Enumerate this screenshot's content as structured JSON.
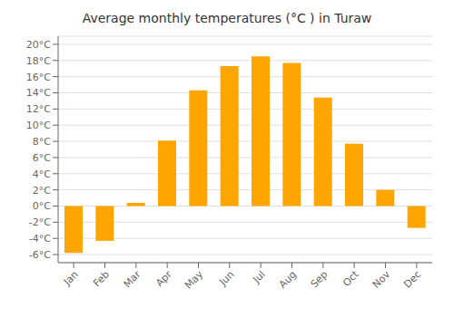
{
  "chart_data": {
    "type": "bar",
    "title": "Average monthly temperatures (°C ) in Turaw",
    "categories": [
      "Jan",
      "Feb",
      "Mar",
      "Apr",
      "May",
      "Jun",
      "Jul",
      "Aug",
      "Sep",
      "Oct",
      "Nov",
      "Dec"
    ],
    "values": [
      -5.8,
      -4.3,
      0.4,
      8.1,
      14.3,
      17.3,
      18.5,
      17.7,
      13.4,
      7.7,
      2.0,
      -2.7
    ],
    "color": "#FFA500",
    "ylim": [
      -7,
      21
    ],
    "yticks": [
      {
        "value": -6,
        "label": "-6°C"
      },
      {
        "value": -4,
        "label": "-4°C"
      },
      {
        "value": -2,
        "label": "-2°C"
      },
      {
        "value": 0,
        "label": "0°C"
      },
      {
        "value": 2,
        "label": "2°C"
      },
      {
        "value": 4,
        "label": "4°C"
      },
      {
        "value": 6,
        "label": "6°C"
      },
      {
        "value": 8,
        "label": "8°C"
      },
      {
        "value": 10,
        "label": "10°C"
      },
      {
        "value": 12,
        "label": "12°C"
      },
      {
        "value": 14,
        "label": "14°C"
      },
      {
        "value": 16,
        "label": "16°C"
      },
      {
        "value": 18,
        "label": "18°C"
      },
      {
        "value": 20,
        "label": "20°C"
      }
    ],
    "grid": true
  }
}
